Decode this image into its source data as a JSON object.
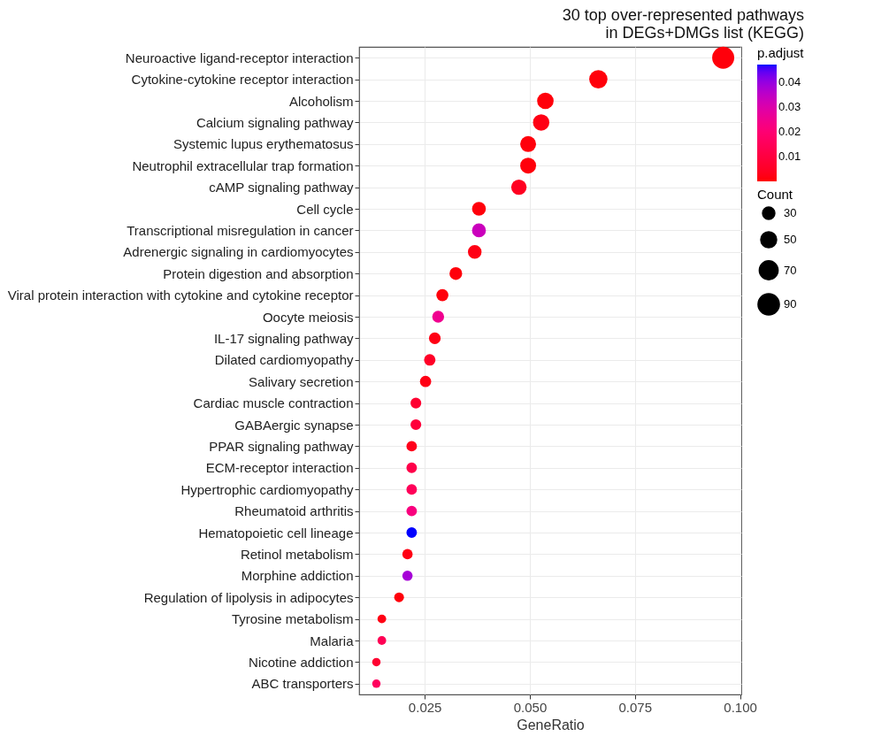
{
  "chart_data": {
    "type": "bubble",
    "orientation": "horizontal",
    "title": "30 top over-represented pathways\nin DEGs+DMGs list (KEGG)",
    "xlabel": "GeneRatio",
    "clabel": "p.adjust",
    "legend_title": "Count",
    "categories": [
      "Neuroactive ligand-receptor interaction",
      "Cytokine-cytokine receptor interaction",
      "Alcoholism",
      "Calcium signaling pathway",
      "Systemic lupus erythematosus",
      "Neutrophil extracellular trap formation",
      "cAMP signaling pathway",
      "Cell cycle",
      "Transcriptional misregulation in cancer",
      "Adrenergic signaling in cardiomyocytes",
      "Protein digestion and absorption",
      "Viral protein interaction with cytokine and cytokine receptor",
      "Oocyte meiosis",
      "IL-17 signaling pathway",
      "Dilated cardiomyopathy",
      "Salivary secretion",
      "Cardiac muscle contraction",
      "GABAergic synapse",
      "PPAR signaling pathway",
      "ECM-receptor interaction",
      "Hypertrophic cardiomyopathy",
      "Rheumatoid arthritis",
      "Hematopoietic cell lineage",
      "Retinol metabolism",
      "Morphine addiction",
      "Regulation of lipolysis in adipocytes",
      "Tyrosine metabolism",
      "Malaria",
      "Nicotine addiction",
      "ABC transporters"
    ],
    "values": [
      0.096,
      0.0663,
      0.0537,
      0.0527,
      0.0496,
      0.0496,
      0.0474,
      0.0379,
      0.0379,
      0.0369,
      0.0324,
      0.0292,
      0.0282,
      0.0274,
      0.0262,
      0.0252,
      0.0229,
      0.0229,
      0.0219,
      0.0219,
      0.0219,
      0.0219,
      0.0219,
      0.0209,
      0.0209,
      0.0189,
      0.0148,
      0.0148,
      0.0135,
      0.0135
    ],
    "sizes": [
      96,
      66,
      54,
      53,
      50,
      50,
      47,
      38,
      38,
      37,
      32,
      29,
      28,
      27,
      26,
      25,
      23,
      23,
      22,
      22,
      22,
      22,
      22,
      21,
      21,
      19,
      15,
      15,
      14,
      14
    ],
    "size_legend": [
      30,
      50,
      70,
      90
    ],
    "cvalues": [
      0.001,
      0.001,
      0.001,
      0.002,
      0.001,
      0.001,
      0.004,
      0.001,
      0.033,
      0.002,
      0.001,
      0.001,
      0.025,
      0.002,
      0.005,
      0.002,
      0.007,
      0.009,
      0.003,
      0.012,
      0.015,
      0.022,
      0.047,
      0.002,
      0.038,
      0.001,
      0.002,
      0.014,
      0.007,
      0.016
    ],
    "clim": [
      0,
      0.047
    ],
    "cticks": [
      0.01,
      0.02,
      0.03,
      0.04
    ],
    "xlim": [
      0.0094,
      0.1003
    ],
    "xticks": [
      0.025,
      {
        "value": 0.05,
        "label": "0.050"
      },
      0.075,
      {
        "value": 0.1,
        "label": "0.100"
      }
    ],
    "grid": true
  }
}
